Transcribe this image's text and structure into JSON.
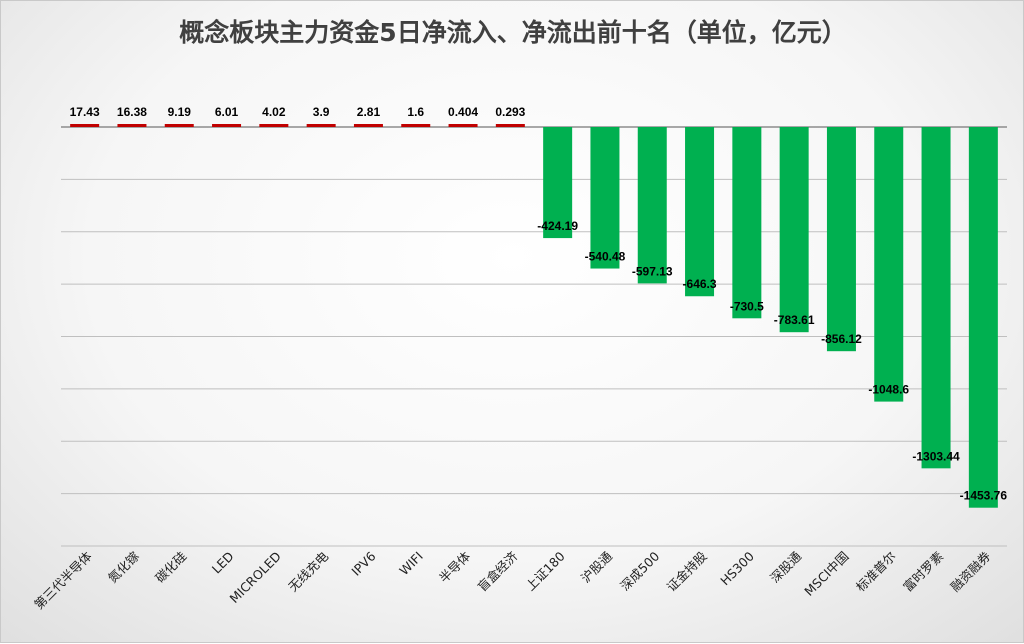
{
  "chart_data": {
    "type": "bar",
    "title": "概念板块主力资金5日净流入、净流出前十名（单位，亿元）",
    "xlabel": "",
    "ylabel": "",
    "ylim": [
      -1600,
      0
    ],
    "grid": true,
    "categories": [
      "第三代半导体",
      "氮化镓",
      "碳化硅",
      "LED",
      "MICROLED",
      "无线充电",
      "IPV6",
      "WIFI",
      "半导体",
      "盲盒经济",
      "上证180",
      "沪股通",
      "深成500",
      "证金持股",
      "HS300",
      "深股通",
      "MSCI中国",
      "标准普尔",
      "富时罗素",
      "融资融券"
    ],
    "values": [
      17.43,
      16.38,
      9.19,
      6.01,
      4.02,
      3.9,
      2.81,
      1.6,
      0.404,
      0.293,
      -424.19,
      -540.48,
      -597.13,
      -646.3,
      -730.5,
      -783.61,
      -856.12,
      -1048.6,
      -1303.44,
      -1453.76
    ],
    "value_labels": [
      "17.43",
      "16.38",
      "9.19",
      "6.01",
      "4.02",
      "3.9",
      "2.81",
      "1.6",
      "0.404",
      "0.293",
      "-424.19",
      "-540.48",
      "-597.13",
      "-646.3",
      "-730.5",
      "-783.61",
      "-856.12",
      "-1048.6",
      "-1303.44",
      "-1453.76"
    ],
    "colors": {
      "positive": "#c00000",
      "negative": "#00b050",
      "grid": "#bfbfbf",
      "axis": "#8c8c8c"
    }
  }
}
